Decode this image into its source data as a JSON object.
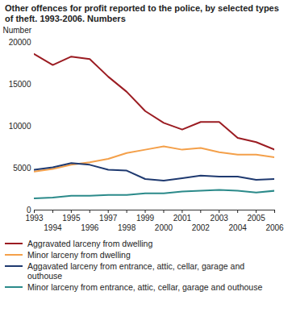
{
  "chart_data": {
    "type": "line",
    "title": "Other offences for profit reported to the police, by selected types of theft. 1993-2006. Numbers",
    "y_label": "Number",
    "x": [
      1993,
      1994,
      1995,
      1996,
      1997,
      1998,
      1999,
      2000,
      2001,
      2002,
      2003,
      2004,
      2005,
      2006
    ],
    "xlim": [
      1993,
      2006
    ],
    "xticks": [
      1993,
      1994,
      1995,
      1996,
      1997,
      1998,
      1999,
      2000,
      2001,
      2002,
      2003,
      2004,
      2005,
      2006
    ],
    "ylim": [
      0,
      20000
    ],
    "yticks": [
      0,
      5000,
      10000,
      15000,
      20000
    ],
    "grid": false,
    "legend": "bottom",
    "series": [
      {
        "name": "Aggravated larceny from dwelling",
        "color": "#9b1c22",
        "values": [
          18600,
          17300,
          18300,
          18000,
          15900,
          14100,
          11800,
          10400,
          9600,
          10500,
          10500,
          8600,
          8100,
          7200
        ]
      },
      {
        "name": "Minor larceny from dwelling",
        "color": "#f4a04a",
        "values": [
          4600,
          4900,
          5400,
          5700,
          6100,
          6800,
          7200,
          7600,
          7200,
          7400,
          6900,
          6600,
          6600,
          6300
        ]
      },
      {
        "name": "Aggavated larceny from entrance, attic, cellar, garage and outhouse",
        "color": "#1f3a70",
        "values": [
          4800,
          5100,
          5600,
          5400,
          4800,
          4700,
          3700,
          3500,
          3800,
          4100,
          4000,
          4000,
          3600,
          3700
        ]
      },
      {
        "name": "Minor larceny from entrance, attic, cellar, garage and outhouse",
        "color": "#2b8a8a",
        "values": [
          1400,
          1500,
          1700,
          1700,
          1800,
          1800,
          2000,
          2000,
          2200,
          2300,
          2400,
          2300,
          2100,
          2300
        ]
      }
    ]
  }
}
